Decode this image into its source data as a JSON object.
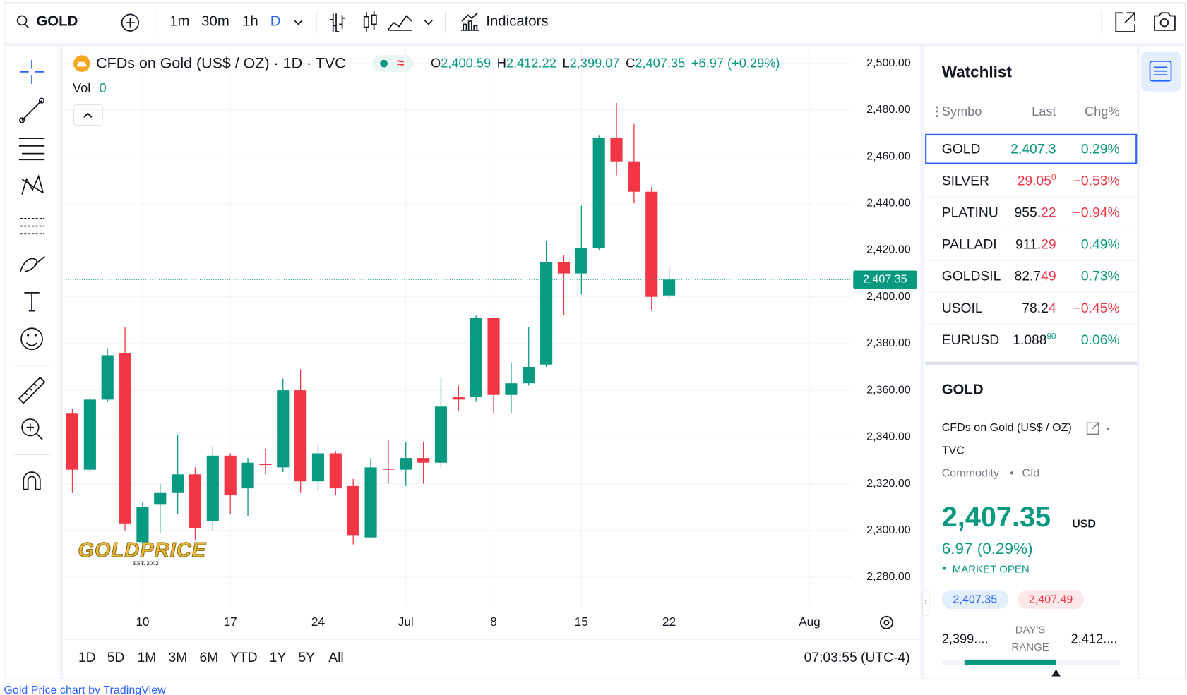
{
  "toolbar": {
    "symbol": "GOLD",
    "intervals": [
      "1m",
      "30m",
      "1h",
      "D"
    ],
    "active_interval": 3,
    "indicators": "Indicators"
  },
  "legend": {
    "title": "CFDs on Gold (US$ / OZ) · 1D · TVC",
    "ohlc": [
      {
        "label": "O",
        "value": "2,400.59"
      },
      {
        "label": "H",
        "value": "2,412.22"
      },
      {
        "label": "L",
        "value": "2,399.07"
      },
      {
        "label": "C",
        "value": "2,407.35"
      }
    ],
    "change": "+6.97 (+0.29%)",
    "volume_label": "Vol",
    "volume": "0"
  },
  "chart_data": {
    "type": "candlestick",
    "open": [
      2350,
      2326,
      2356,
      2376,
      2295,
      2311,
      2316,
      2324,
      2304,
      2332,
      2318,
      2328.5,
      2327,
      2360,
      2321,
      2333,
      2319,
      2297,
      2326.5,
      2326,
      2331,
      2329,
      2357,
      2357,
      2391,
      2358,
      2363,
      2371,
      2415,
      2410,
      2421,
      2468,
      2458,
      2445,
      2400.59
    ],
    "high": [
      2352,
      2357,
      2378,
      2387,
      2312,
      2320,
      2341,
      2327,
      2336,
      2333,
      2331,
      2335,
      2365,
      2369,
      2337,
      2334,
      2322,
      2331,
      2339,
      2338,
      2338,
      2365,
      2362,
      2392,
      2391,
      2372,
      2387,
      2424,
      2418,
      2439,
      2469,
      2483,
      2474,
      2447,
      2412.22
    ],
    "low": [
      2316,
      2325,
      2355,
      2300,
      2294,
      2299,
      2307,
      2296,
      2300,
      2307,
      2306,
      2324,
      2325,
      2316,
      2317,
      2315,
      2294,
      2297,
      2320,
      2319,
      2320,
      2327,
      2351,
      2355,
      2350,
      2350,
      2362,
      2370,
      2392,
      2401,
      2420,
      2452,
      2440,
      2394,
      2399.07
    ],
    "close": [
      2326,
      2356,
      2375,
      2303,
      2310,
      2316,
      2324,
      2301,
      2332,
      2315,
      2329,
      2328,
      2360,
      2321,
      2333,
      2318,
      2298,
      2327,
      2326,
      2331,
      2329,
      2353,
      2356,
      2391,
      2358,
      2363,
      2370,
      2415,
      2410,
      2421,
      2468,
      2458,
      2445,
      2400,
      2407.35
    ],
    "up_color": "#089981",
    "down_color": "#f23645",
    "xlim": [
      -0.5,
      44.4
    ],
    "xticks": [
      {
        "value": 4,
        "label": "10"
      },
      {
        "value": 9,
        "label": "17"
      },
      {
        "value": 14,
        "label": "24"
      },
      {
        "value": 19,
        "label": "Jul"
      },
      {
        "value": 24,
        "label": "8"
      },
      {
        "value": 29,
        "label": "15"
      },
      {
        "value": 34,
        "label": "22"
      },
      {
        "value": 42,
        "label": "Aug"
      }
    ],
    "ylim": [
      2268,
      2507
    ],
    "yticks": [
      {
        "value": 2280,
        "label": "2,280.00"
      },
      {
        "value": 2300,
        "label": "2,300.00"
      },
      {
        "value": 2320,
        "label": "2,320.00"
      },
      {
        "value": 2340,
        "label": "2,340.00"
      },
      {
        "value": 2360,
        "label": "2,360.00"
      },
      {
        "value": 2380,
        "label": "2,380.00"
      },
      {
        "value": 2400,
        "label": "2,400.00"
      },
      {
        "value": 2420,
        "label": "2,420.00"
      },
      {
        "value": 2440,
        "label": "2,440.00"
      },
      {
        "value": 2460,
        "label": "2,460.00"
      },
      {
        "value": 2480,
        "label": "2,480.00"
      },
      {
        "value": 2500,
        "label": "2,500.00"
      }
    ],
    "grid": true,
    "last_price": {
      "value": 2407.35,
      "label": "2,407.35"
    }
  },
  "ranges": [
    "1D",
    "5D",
    "1M",
    "3M",
    "6M",
    "YTD",
    "1Y",
    "5Y",
    "All"
  ],
  "clock": "07:03:55 (UTC-4)",
  "logo": {
    "name": "GOLDPRICE",
    "est": "EST. 2002"
  },
  "watchlist": {
    "title": "Watchlist",
    "headers": [
      "Symbo",
      "Last",
      "Chg%"
    ],
    "rows": [
      {
        "symbol": "GOLD",
        "last_hl": "2,407.3",
        "hl": "up",
        "chg": "0.29%",
        "trend": "up"
      },
      {
        "symbol": "SILVER",
        "last_hl": "29.05",
        "last_sup": "0",
        "hl": "down",
        "chg": "−0.53%",
        "trend": "down"
      },
      {
        "symbol": "PLATINU",
        "last_plain": "955.",
        "last_hl": "22",
        "hl": "down",
        "chg": "−0.94%",
        "trend": "down"
      },
      {
        "symbol": "PALLADI",
        "last_plain": "911.",
        "last_hl": "29",
        "hl": "down",
        "chg": "0.49%",
        "trend": "up"
      },
      {
        "symbol": "GOLDSIL",
        "last_plain": "82.7",
        "last_hl": "49",
        "hl": "down",
        "chg": "0.73%",
        "trend": "up"
      },
      {
        "symbol": "USOIL",
        "last_plain": "78.2",
        "last_hl": "4",
        "hl": "down",
        "chg": "−0.45%",
        "trend": "down"
      },
      {
        "symbol": "EURUSD",
        "last_plain": "1.088",
        "last_sup": "90",
        "hl": "up",
        "chg": "0.06%",
        "trend": "up"
      }
    ]
  },
  "details": {
    "symbol": "GOLD",
    "name": "CFDs on Gold (US$ / OZ)",
    "exchange": "TVC",
    "type": "Commodity",
    "subtype": "Cfd",
    "price": "2,407.35",
    "currency": "USD",
    "change": "6.97 (0.29%)",
    "status": "MARKET OPEN",
    "bid": "2,407.35",
    "ask": "2,407.49",
    "range_low": "2,399....",
    "range_label": [
      "DAY'S",
      "RANGE"
    ],
    "range_high": "2,412...."
  },
  "footer": "Gold Price chart by TradingView"
}
